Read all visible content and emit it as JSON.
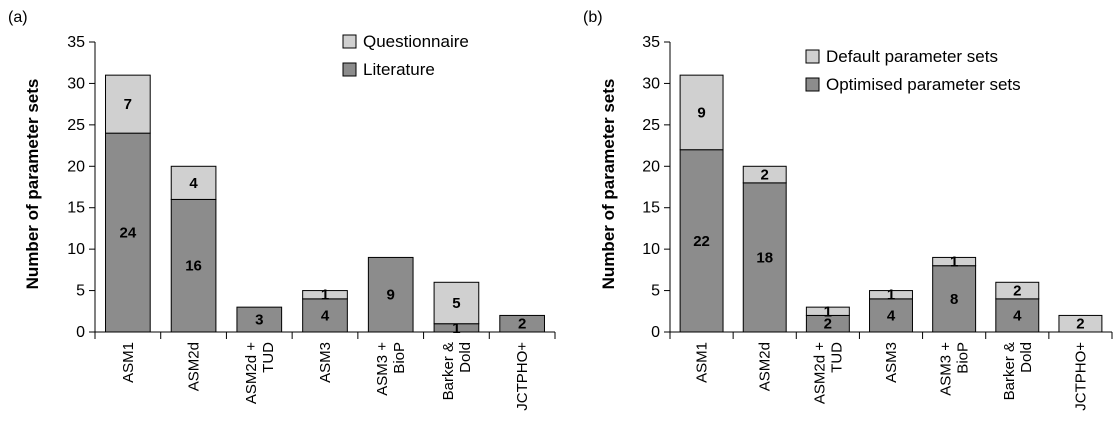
{
  "chart_data": [
    {
      "type": "bar",
      "stacked": true,
      "panel_label": "(a)",
      "ylabel": "Number of parameter sets",
      "ylim": [
        0,
        35
      ],
      "yticks": [
        0,
        5,
        10,
        15,
        20,
        25,
        30,
        35
      ],
      "categories": [
        [
          "ASM1"
        ],
        [
          "ASM2d"
        ],
        [
          "ASM2d +",
          "TUD"
        ],
        [
          "ASM3"
        ],
        [
          "ASM3 +",
          "BioP"
        ],
        [
          "Barker &",
          "Dold"
        ],
        [
          "JCTPHO+"
        ]
      ],
      "legend_position": "top-right",
      "series": [
        {
          "name": "Literature",
          "color": "#8c8c8c",
          "values": [
            24,
            16,
            3,
            4,
            9,
            1,
            2
          ]
        },
        {
          "name": "Questionnaire",
          "color": "#d0d0d0",
          "values": [
            7,
            4,
            0,
            1,
            0,
            5,
            0
          ]
        }
      ],
      "legend_order": [
        "Questionnaire",
        "Literature"
      ]
    },
    {
      "type": "bar",
      "stacked": true,
      "panel_label": "(b)",
      "ylabel": "Number of parameter sets",
      "ylim": [
        0,
        35
      ],
      "yticks": [
        0,
        5,
        10,
        15,
        20,
        25,
        30,
        35
      ],
      "categories": [
        [
          "ASM1"
        ],
        [
          "ASM2d"
        ],
        [
          "ASM2d +",
          "TUD"
        ],
        [
          "ASM3"
        ],
        [
          "ASM3 +",
          "BioP"
        ],
        [
          "Barker &",
          "Dold"
        ],
        [
          "JCTPHO+"
        ]
      ],
      "legend_position": "top-right",
      "series": [
        {
          "name": "Optimised parameter sets",
          "color": "#8c8c8c",
          "values": [
            22,
            18,
            2,
            4,
            8,
            4,
            0
          ]
        },
        {
          "name": "Default parameter sets",
          "color": "#d0d0d0",
          "values": [
            9,
            2,
            1,
            1,
            1,
            2,
            2
          ]
        }
      ],
      "legend_order": [
        "Default parameter sets",
        "Optimised parameter sets"
      ]
    }
  ]
}
